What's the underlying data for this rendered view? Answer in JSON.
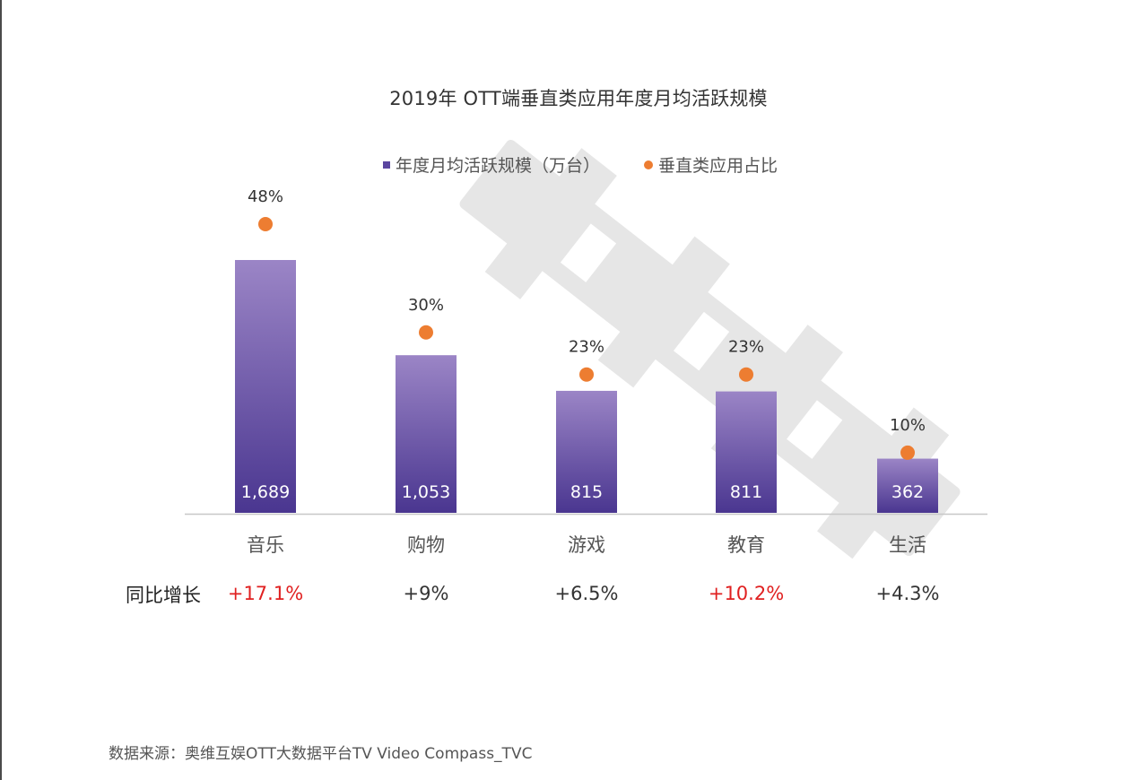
{
  "chart_data": {
    "type": "bar",
    "title": "2019年 OTT端垂直类应用年度月均活跃规模",
    "categories": [
      "音乐",
      "购物",
      "游戏",
      "教育",
      "生活"
    ],
    "series": [
      {
        "name": "年度月均活跃规模（万台）",
        "type": "bar",
        "values": [
          1689,
          1053,
          815,
          811,
          362
        ],
        "value_labels": [
          "1,689",
          "1,053",
          "815",
          "811",
          "362"
        ],
        "color": "#5b46a0"
      },
      {
        "name": "垂直类应用占比",
        "type": "scatter",
        "values": [
          48,
          30,
          23,
          23,
          10
        ],
        "value_labels": [
          "48%",
          "30%",
          "23%",
          "23%",
          "10%"
        ],
        "color": "#ed7d31"
      }
    ],
    "growth": {
      "label": "同比增长",
      "values": [
        "+17.1%",
        "+9%",
        "+6.5%",
        "+10.2%",
        "+4.3%"
      ],
      "highlight": [
        true,
        false,
        false,
        true,
        false
      ],
      "highlight_color": "#e02020"
    },
    "legend_position": "top-center",
    "grid": false,
    "ylim_bar": [
      0,
      1920
    ],
    "ylim_pct": [
      0,
      57
    ]
  },
  "legend": {
    "bar_label": "年度月均活跃规模（万台）",
    "dot_label": "垂直类应用占比"
  },
  "source": "数据来源：奥维互娱OTT大数据平台TV Video Compass_TVC",
  "watermark_text": "奥维互娱",
  "colors": {
    "bar_top": "#9b85c6",
    "bar_bottom": "#4a3690",
    "dot": "#ed7d31",
    "highlight": "#e02020"
  }
}
